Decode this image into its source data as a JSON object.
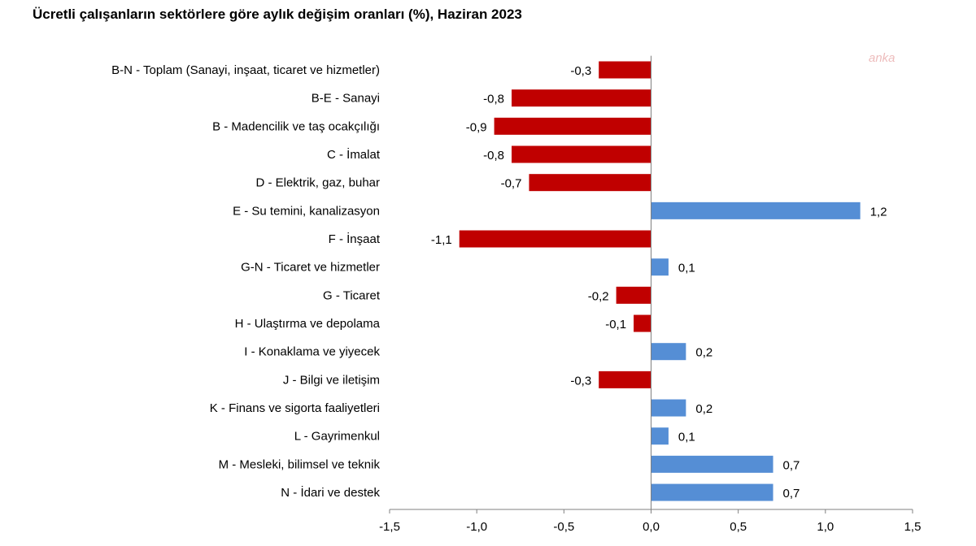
{
  "chart_data": {
    "type": "bar",
    "orientation": "horizontal",
    "title": "Ücretli çalışanların sektörlere göre aylık değişim oranları (%), Haziran 2023",
    "categories": [
      "B-N - Toplam (Sanayi, inşaat, ticaret ve hizmetler)",
      "B-E - Sanayi",
      "B - Madencilik ve taş ocakçılığı",
      "C - İmalat",
      "D - Elektrik, gaz, buhar",
      "E - Su temini, kanalizasyon",
      "F - İnşaat",
      "G-N - Ticaret ve hizmetler",
      "G - Ticaret",
      "H - Ulaştırma ve depolama",
      "I - Konaklama ve yiyecek",
      "J - Bilgi ve iletişim",
      "K - Finans ve sigorta faaliyetleri",
      "L - Gayrimenkul",
      "M - Mesleki, bilimsel ve teknik",
      "N - İdari ve destek"
    ],
    "values": [
      -0.3,
      -0.8,
      -0.9,
      -0.8,
      -0.7,
      1.2,
      -1.1,
      0.1,
      -0.2,
      -0.1,
      0.2,
      -0.3,
      0.2,
      0.1,
      0.7,
      0.7
    ],
    "value_labels": [
      "-0,3",
      "-0,8",
      "-0,9",
      "-0,8",
      "-0,7",
      "1,2",
      "-1,1",
      "0,1",
      "-0,2",
      "-0,1",
      "0,2",
      "-0,3",
      "0,2",
      "0,1",
      "0,7",
      "0,7"
    ],
    "xlim": [
      -1.5,
      1.5
    ],
    "xticks": [
      -1.5,
      -1.0,
      -0.5,
      0.0,
      0.5,
      1.0,
      1.5
    ],
    "xtick_labels": [
      "-1,5",
      "-1,0",
      "-0,5",
      "0,0",
      "0,5",
      "1,0",
      "1,5"
    ],
    "grid": false,
    "legend": "none",
    "colors": {
      "negative": "#c00000",
      "positive": "#558ed5",
      "axis": "#808080"
    }
  },
  "watermark": "anka"
}
